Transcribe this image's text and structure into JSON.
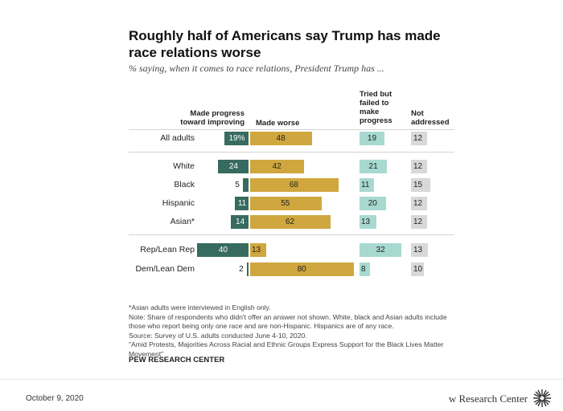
{
  "title": "Roughly half of Americans say Trump has made race relations worse",
  "subtitle": "% saying, when it comes to race relations, President Trump has ...",
  "chart_data": {
    "type": "bar",
    "categories": [
      "All adults",
      "White",
      "Black",
      "Hispanic",
      "Asian*",
      "Rep/Lean Rep",
      "Dem/Lean Dem"
    ],
    "series": [
      {
        "name": "Made progress toward improving",
        "values": [
          19,
          24,
          5,
          11,
          14,
          40,
          2
        ],
        "labels": [
          "19%",
          "24",
          "5",
          "11",
          "14",
          "40",
          "2"
        ]
      },
      {
        "name": "Made worse",
        "values": [
          48,
          42,
          68,
          55,
          62,
          13,
          80
        ],
        "labels": [
          "48",
          "42",
          "68",
          "55",
          "62",
          "13",
          "80"
        ]
      },
      {
        "name": "Tried but failed to make progress",
        "values": [
          19,
          21,
          11,
          20,
          13,
          32,
          8
        ],
        "labels": [
          "19",
          "21",
          "11",
          "20",
          "13",
          "32",
          "8"
        ]
      },
      {
        "name": "Not addressed",
        "values": [
          12,
          12,
          15,
          12,
          12,
          13,
          10
        ],
        "labels": [
          "12",
          "12",
          "15",
          "12",
          "12",
          "13",
          "10"
        ]
      }
    ],
    "colors": {
      "progress": "#386b5f",
      "worse": "#d0a73f",
      "tried": "#a8d9d1",
      "not_addressed": "#d8d8d8"
    }
  },
  "notes": [
    "*Asian adults were interviewed in English only.",
    "Note: Share of respondents who didn't offer an answer not shown. White, black and Asian adults include those who report being only one race and are non-Hispanic. Hispanics are of any race.",
    "Source: Survey of U.S. adults conducted June 4-10, 2020.",
    "\"Amid Protests, Majorities Across Racial and Ethnic Groups Express Support for the Black Lives Matter Movement\""
  ],
  "source_brand": "PEW RESEARCH CENTER",
  "footer": {
    "date": "October 9, 2020",
    "brand": "w Research Center"
  }
}
